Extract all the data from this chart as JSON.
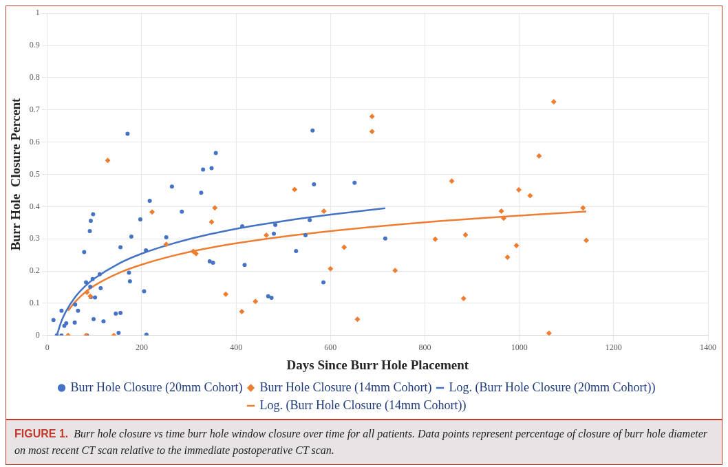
{
  "chart_data": {
    "type": "scatter",
    "xlabel": "Days Since Burr Hole Placement",
    "ylabel": "Burr Hole  Closure Percent",
    "xlim": [
      0,
      1400
    ],
    "xticks": [
      0,
      200,
      400,
      600,
      800,
      1000,
      1200,
      1400
    ],
    "ylim": [
      0,
      1
    ],
    "yticks": [
      0,
      0.1,
      0.2,
      0.3,
      0.4,
      0.5,
      0.6,
      0.7,
      0.8,
      0.9,
      1
    ],
    "grid": true,
    "legend": "bottom",
    "series": [
      {
        "name": "Burr Hole Closure (20mm Cohort)",
        "marker": "circle",
        "color": "#4472c4",
        "x": [
          13,
          20,
          30,
          30,
          36,
          40,
          58,
          59,
          65,
          78,
          82,
          84,
          90,
          92,
          97,
          91,
          92,
          96,
          98,
          101,
          111,
          113,
          119,
          145,
          155,
          151,
          155,
          170,
          173,
          175,
          178,
          197,
          205,
          209,
          210,
          217,
          252,
          264,
          285,
          326,
          330,
          348,
          357,
          344,
          351,
          413,
          418,
          562,
          565,
          651,
          483,
          480,
          556,
          547,
          527,
          468,
          475,
          585,
          716
        ],
        "values": [
          0.048,
          0,
          0,
          0.077,
          0.03,
          0.038,
          0.04,
          0.096,
          0.077,
          0.259,
          0.165,
          0,
          0.324,
          0.356,
          0.376,
          0.151,
          0.119,
          0.175,
          0.051,
          0.118,
          0.19,
          0.147,
          0.044,
          0.068,
          0.07,
          0.008,
          0.274,
          0.626,
          0.195,
          0.168,
          0.307,
          0.36,
          0.137,
          0.264,
          0.003,
          0.418,
          0.305,
          0.462,
          0.384,
          0.443,
          0.515,
          0.519,
          0.566,
          0.23,
          0.226,
          0.339,
          0.219,
          0.636,
          0.469,
          0.474,
          0.343,
          0.316,
          0.358,
          0.311,
          0.262,
          0.122,
          0.117,
          0.165,
          0.301
        ]
      },
      {
        "name": "Burr Hole Closure (14mm Cohort)",
        "marker": "diamond",
        "color": "#ed7d31",
        "x": [
          128,
          44,
          82,
          141,
          84,
          91,
          222,
          252,
          309,
          315,
          348,
          355,
          378,
          412,
          441,
          464,
          524,
          586,
          600,
          629,
          657,
          688,
          688,
          737,
          1073,
          1042,
          857,
          999,
          1023,
          962,
          967,
          1135,
          1142,
          822,
          886,
          994,
          975,
          882,
          1063
        ],
        "values": [
          0.543,
          0,
          0,
          0,
          0.134,
          0.122,
          0.383,
          0.283,
          0.261,
          0.254,
          0.352,
          0.396,
          0.128,
          0.074,
          0.106,
          0.311,
          0.453,
          0.386,
          0.207,
          0.274,
          0.05,
          0.633,
          0.68,
          0.202,
          0.725,
          0.557,
          0.479,
          0.452,
          0.434,
          0.386,
          0.364,
          0.396,
          0.295,
          0.299,
          0.312,
          0.279,
          0.243,
          0.115,
          0.007
        ]
      },
      {
        "name": "Log. (Burr Hole Closure (20mm Cohort))",
        "type": "line",
        "marker": "none",
        "color": "#4472c4",
        "x": [
          20,
          30,
          40,
          60,
          80,
          100,
          150,
          200,
          300,
          400,
          500,
          600,
          716
        ],
        "values": [
          0,
          0.045,
          0.076,
          0.121,
          0.153,
          0.177,
          0.222,
          0.254,
          0.299,
          0.331,
          0.355,
          0.375,
          0.395
        ]
      },
      {
        "name": "Log. (Burr Hole Closure (14mm Cohort))",
        "type": "line",
        "marker": "none",
        "color": "#ed7d31",
        "x": [
          44,
          60,
          80,
          100,
          150,
          200,
          300,
          400,
          500,
          600,
          800,
          1000,
          1142
        ],
        "values": [
          0.077,
          0.106,
          0.134,
          0.155,
          0.193,
          0.22,
          0.259,
          0.286,
          0.307,
          0.324,
          0.351,
          0.372,
          0.385
        ]
      }
    ],
    "annotations": [
      "FIGURE 1.",
      "Burr hole closure vs time burr hole window closure over time for all patients. Data points represent percentage of closure of burr hole diameter on most recent CT scan relative to the immediate postoperative CT scan."
    ]
  }
}
